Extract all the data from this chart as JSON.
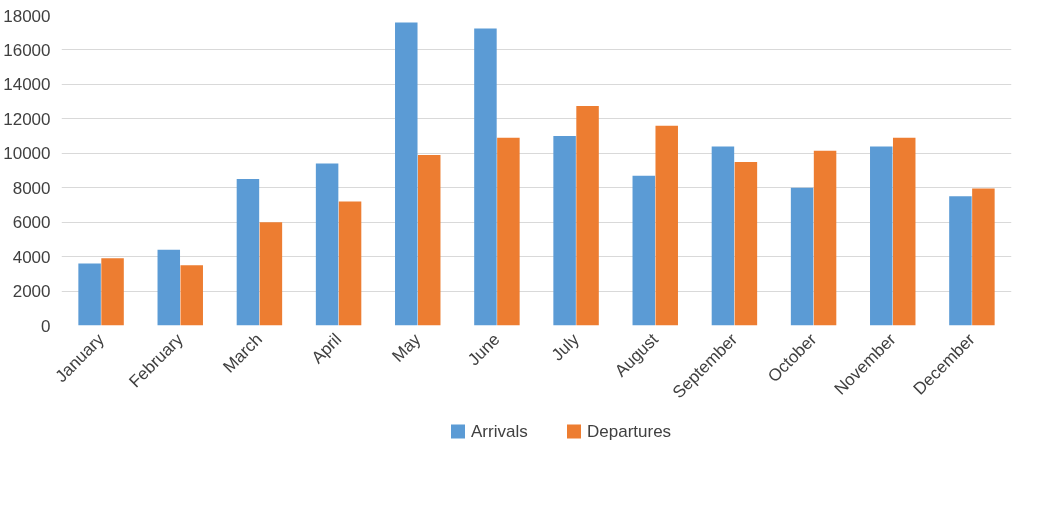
{
  "chart_data": {
    "type": "bar",
    "categories": [
      "January",
      "February",
      "March",
      "April",
      "May",
      "June",
      "July",
      "August",
      "September",
      "October",
      "November",
      "December"
    ],
    "series": [
      {
        "name": "Arrivals",
        "color": "#5b9bd5",
        "values": [
          3600,
          4400,
          8500,
          9400,
          17600,
          17250,
          11000,
          8700,
          10400,
          8000,
          10400,
          7500
        ]
      },
      {
        "name": "Departures",
        "color": "#ed7d31",
        "values": [
          3900,
          3500,
          6000,
          7200,
          9900,
          10900,
          12750,
          11600,
          9500,
          10150,
          10900,
          7950
        ]
      }
    ],
    "ylim": [
      0,
      18000
    ],
    "yticks": [
      0,
      2000,
      4000,
      6000,
      8000,
      10000,
      12000,
      14000,
      16000,
      18000
    ],
    "grid": "y",
    "legend": "bottom"
  }
}
